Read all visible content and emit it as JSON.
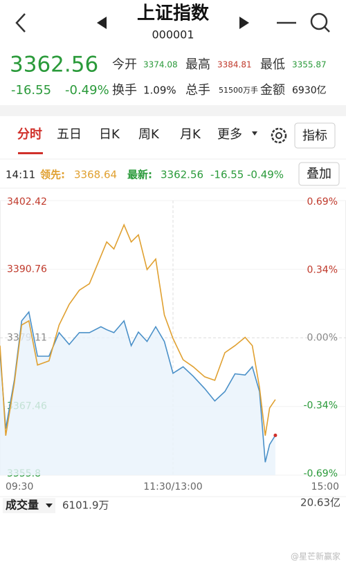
{
  "header": {
    "title": "上证指数",
    "code": "000001"
  },
  "quote": {
    "price": "3362.56",
    "change": "-16.55",
    "change_pct": "-0.49%",
    "open_label": "今开",
    "open": "3374.08",
    "high_label": "最高",
    "high": "3384.81",
    "low_label": "最低",
    "low": "3355.87",
    "turnover_label": "换手",
    "turnover": "1.09%",
    "volume_label": "总手",
    "volume": "51500万手",
    "amount_label": "金额",
    "amount": "6930亿"
  },
  "tabs": [
    "分时",
    "五日",
    "日K",
    "周K",
    "月K",
    "更多"
  ],
  "indicator_button": "指标",
  "info": {
    "time": "14:11",
    "leader_label": "领先:",
    "leader": "3368.64",
    "latest_label": "最新:",
    "latest": "3362.56",
    "change": "-16.55",
    "change_pct": "-0.49%",
    "overlay_button": "叠加"
  },
  "volume_panel": {
    "label": "成交量",
    "volume": "6101.9万",
    "amount": "20.63亿"
  },
  "watermark": "@星芒新赢家",
  "chart_data": {
    "type": "line",
    "x": [
      0,
      4,
      10,
      15,
      20,
      26,
      34,
      41,
      48,
      55,
      62,
      70,
      74,
      79,
      86,
      91,
      96,
      102,
      108,
      114,
      120,
      127,
      134,
      142,
      149,
      156,
      163,
      170,
      175,
      180,
      184,
      187,
      191
    ],
    "xlim": [
      0,
      240
    ],
    "xticks": [
      {
        "value": 0,
        "label": "09:30"
      },
      {
        "value": 120,
        "label": "11:30/13:00"
      },
      {
        "value": 240,
        "label": "15:00"
      }
    ],
    "ylim": [
      3355.8,
      3402.42
    ],
    "yticks": [
      3402.42,
      3390.76,
      3379.11,
      3367.46,
      3355.8
    ],
    "y2lim": [
      -0.69,
      0.69
    ],
    "y2ticks": [
      {
        "value": 0.69,
        "label": "0.69%"
      },
      {
        "value": 0.34,
        "label": "0.34%"
      },
      {
        "value": 0,
        "label": "0.00%"
      },
      {
        "value": -0.34,
        "label": "-0.34%"
      },
      {
        "value": -0.69,
        "label": "-0.69%"
      }
    ],
    "series": [
      {
        "name": "最新",
        "color": "#4a90c8",
        "values": [
          3376.6,
          3363.7,
          3372,
          3382,
          3383.5,
          3376,
          3376,
          3380,
          3378,
          3380,
          3380,
          3381,
          3380.5,
          3380,
          3382,
          3377.8,
          3380.1,
          3378.5,
          3381,
          3378.5,
          3373.1,
          3374.2,
          3372.6,
          3370.5,
          3368.4,
          3370,
          3373,
          3372.8,
          3374.2,
          3370,
          3358,
          3361,
          3362.56
        ]
      },
      {
        "name": "领先",
        "color": "#e0a030",
        "values": [
          3377.8,
          3362.5,
          3371.5,
          3381.3,
          3382,
          3374.5,
          3375.2,
          3381.3,
          3384.8,
          3387.2,
          3388.3,
          3393,
          3395.4,
          3394.2,
          3398.3,
          3395.4,
          3396.6,
          3390.7,
          3392.5,
          3383,
          3379,
          3375.4,
          3374.2,
          3372.5,
          3371.9,
          3376.6,
          3377.8,
          3379.2,
          3377.8,
          3370.7,
          3362.5,
          3367.2,
          3368.64
        ]
      }
    ]
  }
}
